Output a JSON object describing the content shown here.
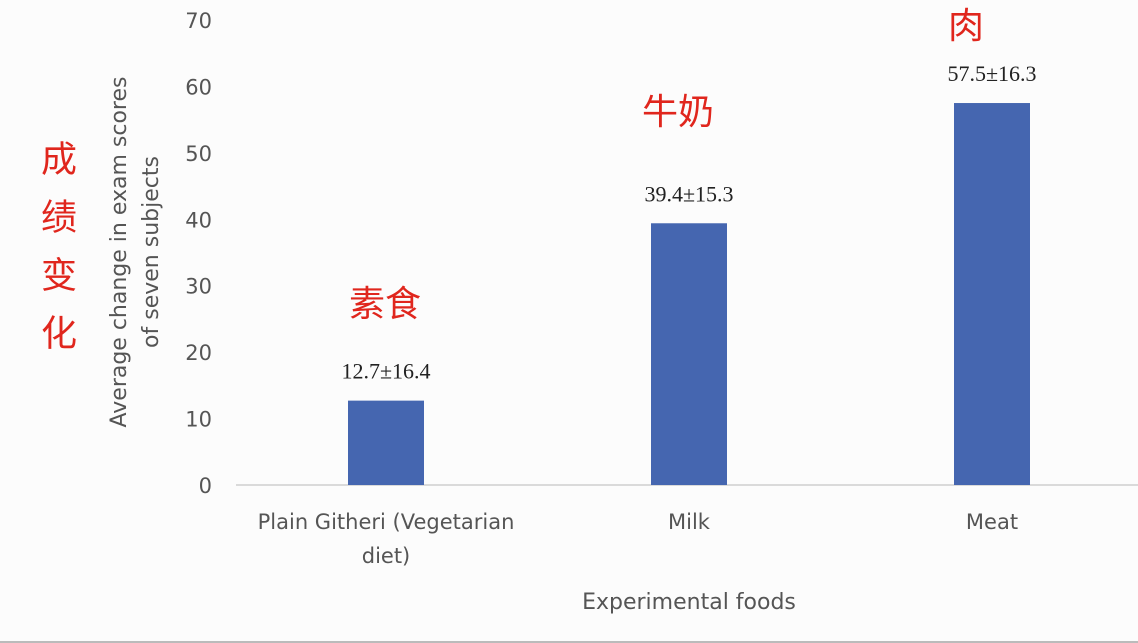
{
  "chart_data": {
    "type": "bar",
    "categories": [
      [
        "Plain Githeri (Vegetarian",
        "diet)"
      ],
      [
        "Milk"
      ],
      [
        "Meat"
      ]
    ],
    "values": [
      12.7,
      39.4,
      57.5
    ],
    "data_labels": [
      "12.7±16.4",
      "39.4±15.3",
      "57.5±16.3"
    ],
    "xlabel": "Experimental foods",
    "ylabel": [
      "Average change in exam scores",
      "of seven subjects"
    ],
    "ylim": [
      0,
      70
    ],
    "yticks": [
      0,
      10,
      20,
      30,
      40,
      50,
      60,
      70
    ],
    "grid": false,
    "bar_color": "#4566b0",
    "annotations": {
      "ylabel_cn": "成绩变化",
      "bar_labels_cn": [
        "素食",
        "牛奶",
        "肉"
      ],
      "color": "#e0261d"
    }
  }
}
